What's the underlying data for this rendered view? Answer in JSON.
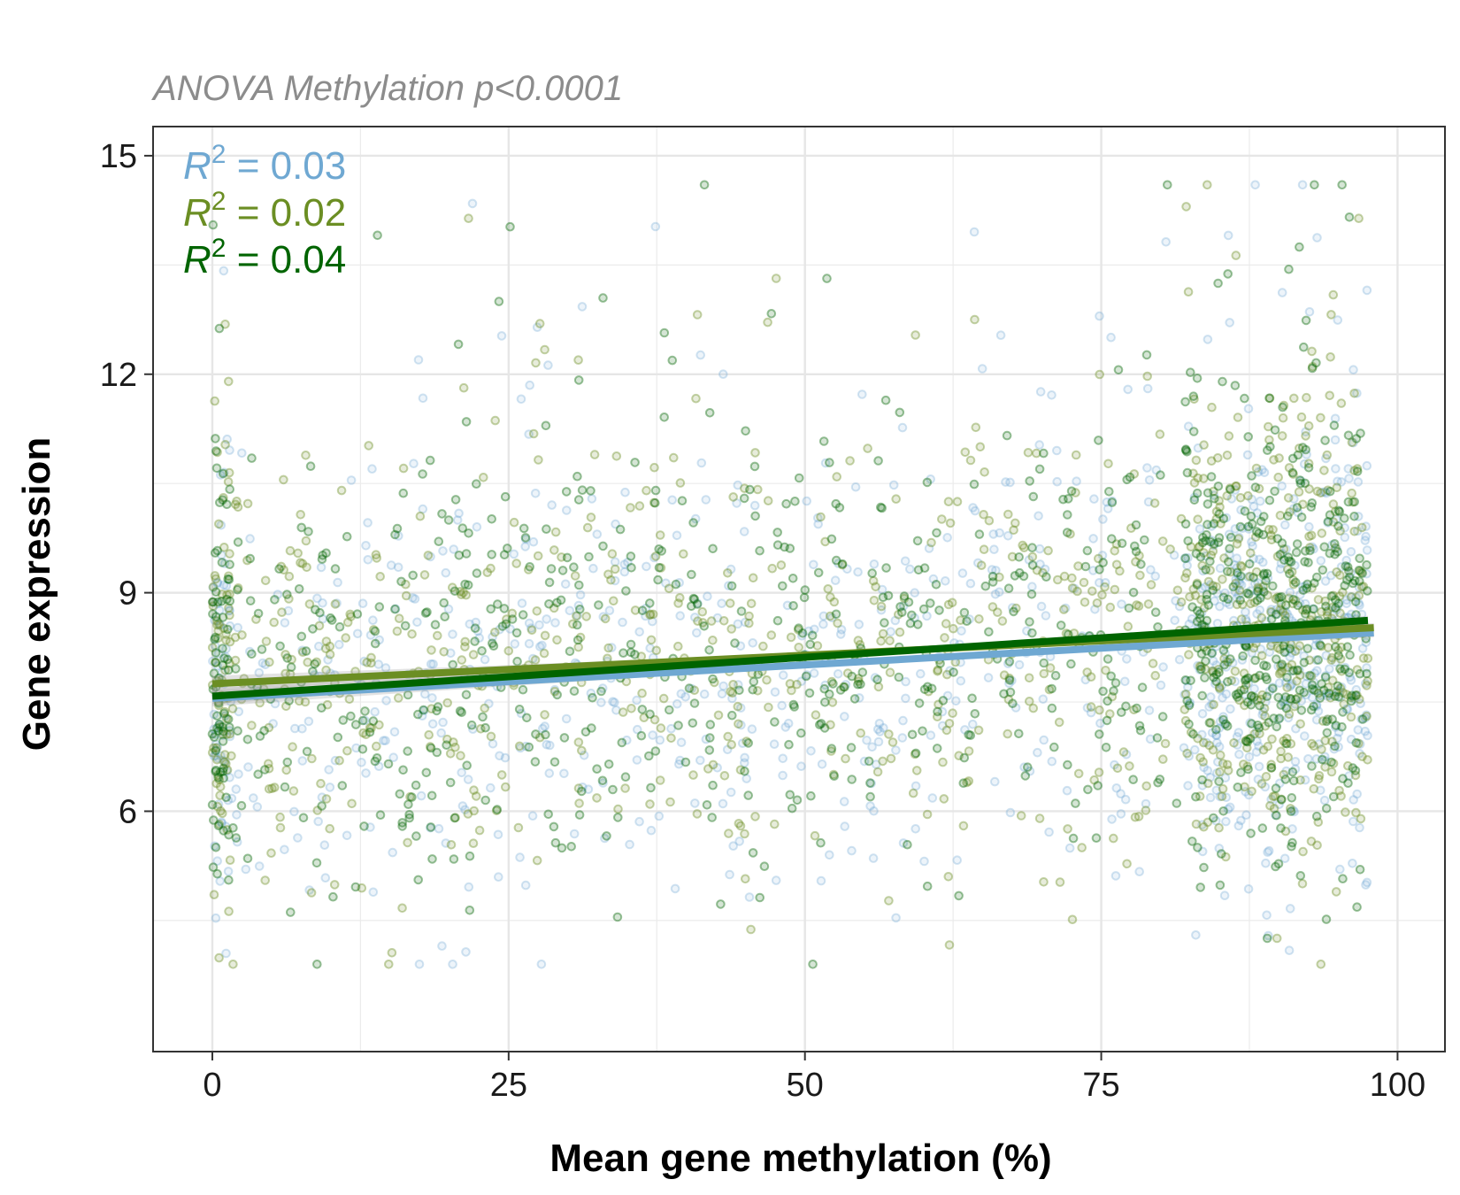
{
  "chart_data": {
    "type": "scatter",
    "subtitle": "ANOVA Methylation p<0.0001",
    "xlabel": "Mean gene methylation (%)",
    "ylabel": "Gene expression",
    "xlim": [
      -5,
      104
    ],
    "ylim": [
      2.7,
      15.4
    ],
    "x_ticks": [
      0,
      25,
      50,
      75,
      100
    ],
    "x_tick_labels": [
      "0",
      "25",
      "50",
      "75",
      "100"
    ],
    "y_ticks": [
      6,
      9,
      12,
      15
    ],
    "y_tick_labels": [
      "6",
      "9",
      "12",
      "15"
    ],
    "grid": true,
    "legend": "none",
    "series": [
      {
        "color": "#6fa8d2",
        "point_opacity": 0.22,
        "n_points": 1000,
        "fit": {
          "x": [
            0,
            98
          ],
          "y": [
            7.55,
            8.45
          ]
        },
        "r2_label": {
          "prefix": "R",
          "sup": "2",
          "text": " = 0.03"
        }
      },
      {
        "color": "#6b8e23",
        "point_opacity": 0.3,
        "n_points": 1000,
        "fit": {
          "x": [
            0,
            98
          ],
          "y": [
            7.75,
            8.52
          ]
        },
        "r2_label": {
          "prefix": "R",
          "sup": "2",
          "text": " = 0.02"
        }
      },
      {
        "color": "#006400",
        "point_opacity": 0.3,
        "n_points": 1000,
        "fit": {
          "x": [
            0,
            97.5
          ],
          "y": [
            7.58,
            8.62
          ]
        },
        "r2_label": {
          "prefix": "R",
          "sup": "2",
          "text": " = 0.04"
        }
      }
    ]
  }
}
